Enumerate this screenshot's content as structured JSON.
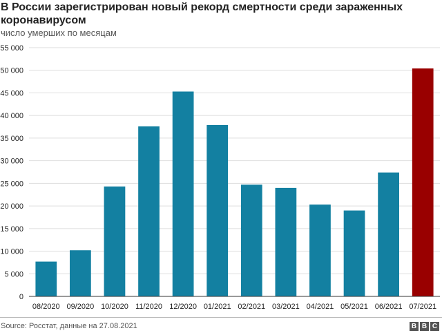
{
  "header": {
    "title": "В России зарегистрирован новый рекорд смертности среди зараженных коронавирусом",
    "subtitle": "число умерших по месяцам"
  },
  "footer": {
    "source": "Source: Росстат, данные на 27.08.2021",
    "logo_letters": [
      "B",
      "B",
      "C"
    ]
  },
  "colors": {
    "bar": "#1380a1",
    "highlight": "#990000",
    "grid": "#dddddd",
    "axis": "#333333"
  },
  "chart_data": {
    "type": "bar",
    "title": "В России зарегистрирован новый рекорд смертности среди зараженных коронавирусом",
    "subtitle": "число умерших по месяцам",
    "categories": [
      "08/2020",
      "09/2020",
      "10/2020",
      "11/2020",
      "12/2020",
      "01/2021",
      "02/2021",
      "03/2021",
      "04/2021",
      "05/2021",
      "06/2021",
      "07/2021"
    ],
    "values": [
      7700,
      10200,
      24300,
      37600,
      45300,
      37900,
      24700,
      24000,
      20300,
      19000,
      27400,
      50400
    ],
    "highlight_index": 11,
    "ylim": [
      0,
      55000
    ],
    "yticks": [
      0,
      5000,
      10000,
      15000,
      20000,
      25000,
      30000,
      35000,
      40000,
      45000,
      50000,
      55000
    ],
    "ytick_labels": [
      "0",
      "5 000",
      "10 000",
      "15 000",
      "20 000",
      "25 000",
      "30 000",
      "35 000",
      "40 000",
      "45 000",
      "50 000",
      "55 000"
    ],
    "xlabel": "",
    "ylabel": "",
    "grid": true
  }
}
